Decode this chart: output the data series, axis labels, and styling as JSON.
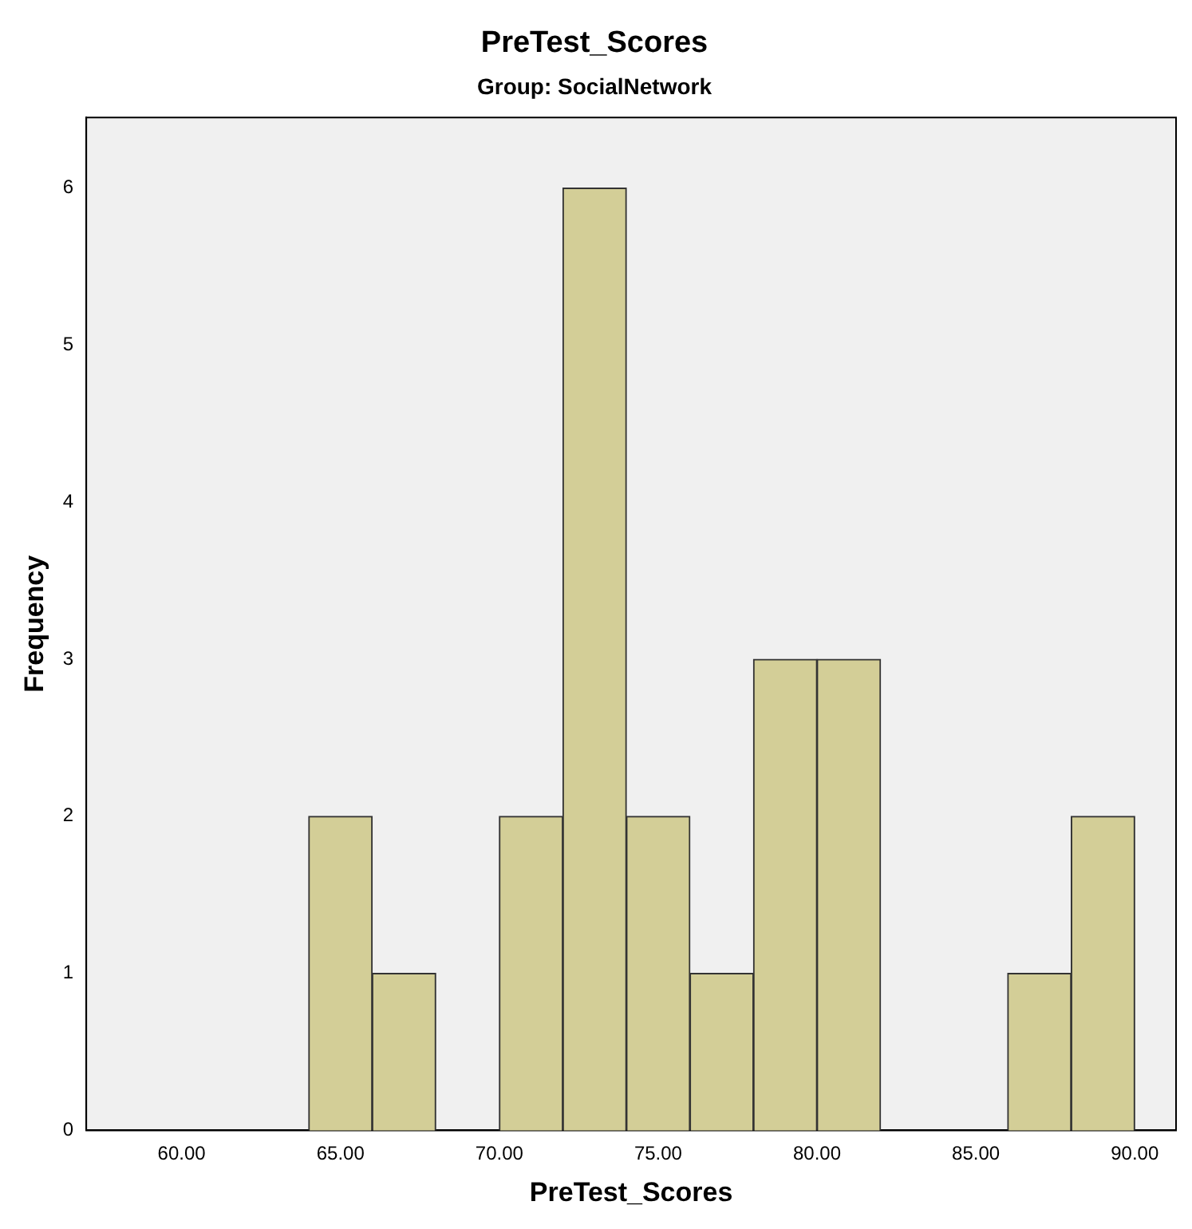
{
  "chart_data": {
    "type": "histogram",
    "title": "PreTest_Scores",
    "subtitle": "Group: SocialNetwork",
    "xlabel": "PreTest_Scores",
    "ylabel": "Frequency",
    "bins": [
      64,
      66,
      68,
      70,
      72,
      74,
      76,
      78,
      80,
      82,
      84,
      86,
      88,
      90
    ],
    "values": [
      2,
      1,
      0,
      2,
      6,
      2,
      1,
      3,
      3,
      0,
      0,
      1,
      2
    ],
    "color": "#d3ce97",
    "xlim": [
      57,
      91.3
    ],
    "ylim": [
      0,
      6.45
    ],
    "xticks": [
      {
        "value": 60,
        "label": "60.00"
      },
      {
        "value": 65,
        "label": "65.00"
      },
      {
        "value": 70,
        "label": "70.00"
      },
      {
        "value": 75,
        "label": "75.00"
      },
      {
        "value": 80,
        "label": "80.00"
      },
      {
        "value": 85,
        "label": "85.00"
      },
      {
        "value": 90,
        "label": "90.00"
      }
    ],
    "yticks": [
      0,
      1,
      2,
      3,
      4,
      5,
      6
    ]
  }
}
